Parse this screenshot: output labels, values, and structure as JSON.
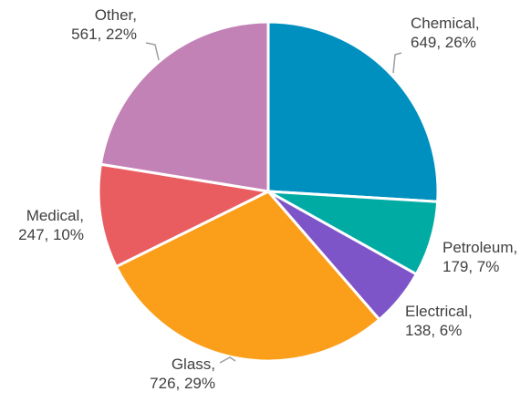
{
  "chart_data": {
    "type": "pie",
    "title": "",
    "start_angle_deg": 0,
    "direction": "clockwise",
    "slices": [
      {
        "label": "Chemical",
        "value": 649,
        "percent": "26%",
        "color": "#0090c0"
      },
      {
        "label": "Petroleum",
        "value": 179,
        "percent": "7%",
        "color": "#00aba4"
      },
      {
        "label": "Electrical",
        "value": 138,
        "percent": "6%",
        "color": "#7e55c8"
      },
      {
        "label": "Glass",
        "value": 726,
        "percent": "29%",
        "color": "#fb9e1a"
      },
      {
        "label": "Medical",
        "value": 247,
        "percent": "10%",
        "color": "#e95c60"
      },
      {
        "label": "Other",
        "value": 561,
        "percent": "22%",
        "color": "#c382b6"
      }
    ]
  }
}
